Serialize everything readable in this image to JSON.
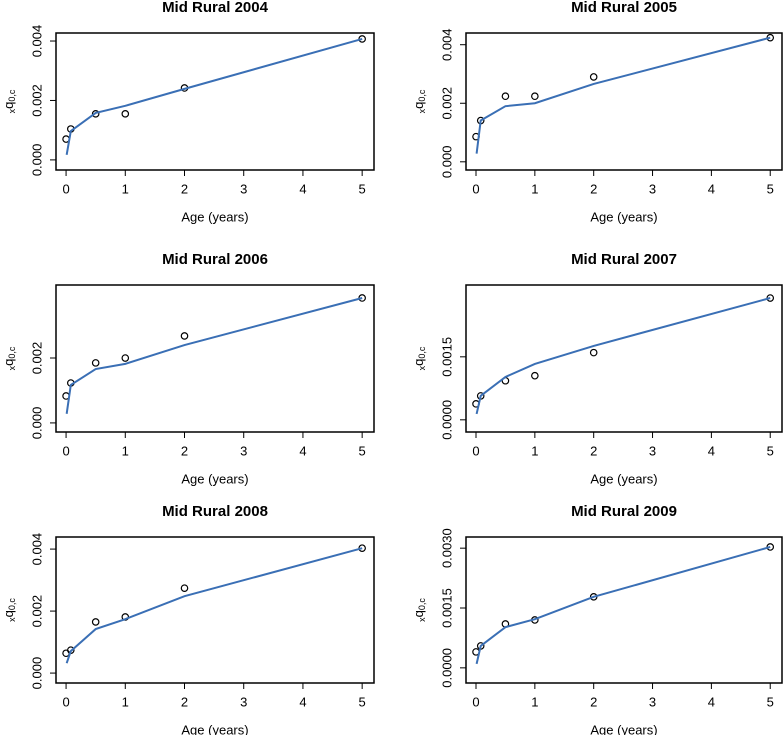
{
  "chart_data": [
    {
      "type": "line",
      "title": "Mid Rural 2004",
      "xlabel": "Age (years)",
      "ylabel": [
        "x",
        "q",
        "0,c"
      ],
      "xlim": [
        -0.17,
        5.2
      ],
      "xticks": [
        0,
        1,
        2,
        3,
        4,
        5
      ],
      "ylim": [
        -0.00034,
        0.00427
      ],
      "yticks": [
        {
          "value": 0,
          "label": "0.000"
        },
        {
          "value": 0.002,
          "label": "0.002"
        },
        {
          "value": 0.004,
          "label": "0.004"
        }
      ],
      "series": [
        {
          "style": "points",
          "color": "#000000",
          "x": [
            0,
            0.08,
            0.5,
            1,
            2,
            5
          ],
          "values": [
            0.0007,
            0.00104,
            0.00155,
            0.00155,
            0.00242,
            0.00407
          ]
        },
        {
          "style": "line",
          "color": "#3a6fb5",
          "x": [
            0.01,
            0.08,
            0.5,
            1,
            2,
            5
          ],
          "values": [
            0.00017,
            0.00097,
            0.00158,
            0.00182,
            0.00239,
            0.00407
          ]
        }
      ]
    },
    {
      "type": "line",
      "title": "Mid Rural 2005",
      "xlabel": "Age (years)",
      "ylabel": [
        "x",
        "q",
        "0,c"
      ],
      "xlim": [
        -0.17,
        5.2
      ],
      "xticks": [
        0,
        1,
        2,
        3,
        4,
        5
      ],
      "ylim": [
        -0.00028,
        0.0044
      ],
      "yticks": [
        {
          "value": 0,
          "label": "0.000"
        },
        {
          "value": 0.002,
          "label": "0.002"
        },
        {
          "value": 0.004,
          "label": "0.004"
        }
      ],
      "series": [
        {
          "style": "points",
          "color": "#000000",
          "x": [
            0,
            0.08,
            0.5,
            1,
            2,
            5
          ],
          "values": [
            0.00086,
            0.00141,
            0.00224,
            0.00224,
            0.0029,
            0.00424
          ]
        },
        {
          "style": "line",
          "color": "#3a6fb5",
          "x": [
            0.01,
            0.08,
            0.5,
            1,
            2,
            5
          ],
          "values": [
            0.00028,
            0.00141,
            0.0019,
            0.002,
            0.00266,
            0.00424
          ]
        }
      ]
    },
    {
      "type": "line",
      "title": "Mid Rural 2006",
      "xlabel": "Age (years)",
      "ylabel": [
        "x",
        "q",
        "0,c"
      ],
      "xlim": [
        -0.17,
        5.2
      ],
      "xticks": [
        0,
        1,
        2,
        3,
        4,
        5
      ],
      "ylim": [
        -0.00028,
        0.00425
      ],
      "yticks": [
        {
          "value": 0,
          "label": "0.000"
        },
        {
          "value": 0.002,
          "label": "0.002"
        }
      ],
      "series": [
        {
          "style": "points",
          "color": "#000000",
          "x": [
            0,
            0.08,
            0.5,
            1,
            2,
            5
          ],
          "values": [
            0.00083,
            0.00123,
            0.00185,
            0.002,
            0.00268,
            0.00385
          ]
        },
        {
          "style": "line",
          "color": "#3a6fb5",
          "x": [
            0.01,
            0.08,
            0.5,
            1,
            2,
            5
          ],
          "values": [
            0.00028,
            0.00117,
            0.00166,
            0.00182,
            0.0024,
            0.00385
          ]
        }
      ]
    },
    {
      "type": "line",
      "title": "Mid Rural 2007",
      "xlabel": "Age (years)",
      "ylabel": [
        "x",
        "q",
        "0,c"
      ],
      "xlim": [
        -0.17,
        5.2
      ],
      "xticks": [
        0,
        1,
        2,
        3,
        4,
        5
      ],
      "ylim": [
        -0.00029,
        0.00321
      ],
      "yticks": [
        {
          "value": 0,
          "label": "0.0000"
        },
        {
          "value": 0.0015,
          "label": "0.0015"
        }
      ],
      "series": [
        {
          "style": "points",
          "color": "#000000",
          "x": [
            0,
            0.08,
            0.5,
            1,
            2,
            5
          ],
          "values": [
            0.00038,
            0.00057,
            0.00093,
            0.00105,
            0.0016,
            0.0029
          ]
        },
        {
          "style": "line",
          "color": "#3a6fb5",
          "x": [
            0.01,
            0.08,
            0.5,
            1,
            2,
            5
          ],
          "values": [
            0.00014,
            0.00057,
            0.00102,
            0.00133,
            0.00176,
            0.0029
          ]
        }
      ]
    },
    {
      "type": "line",
      "title": "Mid Rural 2008",
      "xlabel": "Age (years)",
      "ylabel": [
        "x",
        "q",
        "0,c"
      ],
      "xlim": [
        -0.17,
        5.2
      ],
      "xticks": [
        0,
        1,
        2,
        3,
        4,
        5
      ],
      "ylim": [
        -0.00032,
        0.00439
      ],
      "yticks": [
        {
          "value": 0,
          "label": "0.000"
        },
        {
          "value": 0.002,
          "label": "0.002"
        },
        {
          "value": 0.004,
          "label": "0.004"
        }
      ],
      "series": [
        {
          "style": "points",
          "color": "#000000",
          "x": [
            0,
            0.08,
            0.5,
            1,
            2,
            5
          ],
          "values": [
            0.00064,
            0.00074,
            0.00165,
            0.00181,
            0.00274,
            0.00403
          ]
        },
        {
          "style": "line",
          "color": "#3a6fb5",
          "x": [
            0.01,
            0.08,
            0.5,
            1,
            2,
            5
          ],
          "values": [
            0.00032,
            0.00071,
            0.00142,
            0.00174,
            0.00248,
            0.00403
          ]
        }
      ]
    },
    {
      "type": "line",
      "title": "Mid Rural 2009",
      "xlabel": "Age (years)",
      "ylabel": [
        "x",
        "q",
        "0,c"
      ],
      "xlim": [
        -0.17,
        5.2
      ],
      "xticks": [
        0,
        1,
        2,
        3,
        4,
        5
      ],
      "ylim": [
        -0.00038,
        0.00328
      ],
      "yticks": [
        {
          "value": 0,
          "label": "0.0000"
        },
        {
          "value": 0.0015,
          "label": "0.0015"
        },
        {
          "value": 0.003,
          "label": "0.0030"
        }
      ],
      "series": [
        {
          "style": "points",
          "color": "#000000",
          "x": [
            0,
            0.08,
            0.5,
            1,
            2,
            5
          ],
          "values": [
            0.0004,
            0.00055,
            0.0011,
            0.0012,
            0.00178,
            0.00303
          ]
        },
        {
          "style": "line",
          "color": "#3a6fb5",
          "x": [
            0.01,
            0.08,
            0.5,
            1,
            2,
            5
          ],
          "values": [
            0.0001,
            0.00055,
            0.00102,
            0.00122,
            0.00178,
            0.00303
          ]
        }
      ]
    }
  ]
}
